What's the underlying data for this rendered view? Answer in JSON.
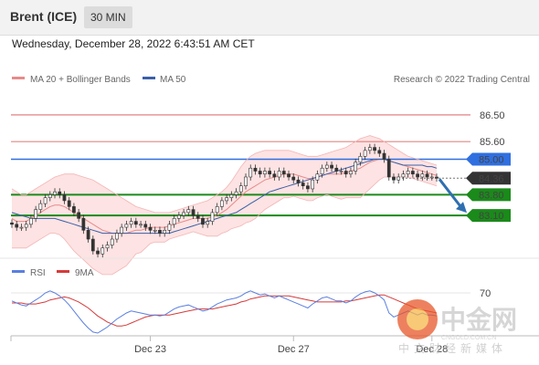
{
  "header": {
    "title": "Brent (ICE)",
    "timeframe": "30 MIN"
  },
  "date_line": "Wednesday, December 28, 2022 6:43:51 AM CET",
  "copyright": "Research © 2022 Trading Central",
  "watermark": {
    "main": "中金网",
    "sub": "CNGOLD.COM.CN",
    "tagline": "中文财经新媒体"
  },
  "colors": {
    "ma20_bb": "#e88a8a",
    "ma50": "#3a5fa8",
    "support": "#1a8a1a",
    "resistance": "#d64a4a",
    "pivot": "#2f6fe0",
    "price": "#333333",
    "rsi": "#5b7fe0",
    "rsi_ma": "#d63a3a",
    "band_fill": "#fde3e3",
    "arrow": "#2f6fb0"
  },
  "chart_data": [
    {
      "type": "candlestick",
      "legend": [
        {
          "name": "MA 20 + Bollinger Bands",
          "color": "#e88a8a"
        },
        {
          "name": "MA 50",
          "color": "#3a5fa8"
        }
      ],
      "x_ticks": [
        "Dec 23",
        "Dec 27",
        "Dec 28"
      ],
      "ylim": [
        81.9,
        87.3
      ],
      "levels": [
        {
          "label": "86.50",
          "value": 86.5,
          "kind": "resistance"
        },
        {
          "label": "85.60",
          "value": 85.6,
          "kind": "resistance"
        },
        {
          "label": "85.00",
          "value": 85.0,
          "kind": "pivot"
        },
        {
          "label": "84.36",
          "value": 84.36,
          "kind": "last-price"
        },
        {
          "label": "83.80",
          "value": 83.8,
          "kind": "support"
        },
        {
          "label": "83.10",
          "value": 83.1,
          "kind": "support"
        }
      ],
      "close": [
        82.8,
        82.7,
        82.7,
        82.8,
        83.0,
        83.3,
        83.5,
        83.7,
        83.8,
        83.9,
        83.8,
        83.6,
        83.4,
        83.2,
        83.0,
        82.6,
        82.3,
        81.9,
        81.8,
        82.0,
        82.1,
        82.3,
        82.5,
        82.7,
        82.8,
        82.9,
        82.8,
        82.8,
        82.7,
        82.6,
        82.6,
        82.5,
        82.6,
        82.8,
        83.0,
        83.1,
        83.2,
        83.3,
        83.1,
        83.0,
        82.8,
        82.9,
        83.2,
        83.4,
        83.6,
        83.7,
        83.8,
        83.9,
        84.1,
        84.4,
        84.7,
        84.6,
        84.5,
        84.6,
        84.5,
        84.4,
        84.6,
        84.5,
        84.4,
        84.3,
        84.2,
        84.1,
        84.0,
        84.3,
        84.5,
        84.7,
        84.8,
        84.7,
        84.6,
        84.6,
        84.5,
        84.6,
        84.9,
        85.1,
        85.3,
        85.4,
        85.3,
        85.2,
        85.0,
        84.4,
        84.3,
        84.4,
        84.5,
        84.6,
        84.5,
        84.4,
        84.5,
        84.4,
        84.4,
        84.36
      ],
      "ma20": [
        83.0,
        82.9,
        82.9,
        82.9,
        83.0,
        83.1,
        83.2,
        83.3,
        83.4,
        83.45,
        83.45,
        83.4,
        83.3,
        83.2,
        83.1,
        83.0,
        82.9,
        82.8,
        82.7,
        82.6,
        82.55,
        82.5,
        82.5,
        82.5,
        82.5,
        82.55,
        82.6,
        82.6,
        82.65,
        82.7,
        82.7,
        82.7,
        82.7,
        82.75,
        82.8,
        82.85,
        82.9,
        82.95,
        83.0,
        83.0,
        83.0,
        83.0,
        83.05,
        83.1,
        83.2,
        83.3,
        83.45,
        83.6,
        83.75,
        83.9,
        84.0,
        84.1,
        84.2,
        84.3,
        84.35,
        84.4,
        84.45,
        84.5,
        84.5,
        84.5,
        84.45,
        84.4,
        84.35,
        84.35,
        84.4,
        84.45,
        84.5,
        84.5,
        84.5,
        84.5,
        84.55,
        84.6,
        84.65,
        84.7,
        84.8,
        84.9,
        84.95,
        85.0,
        85.0,
        84.95,
        84.9,
        84.85,
        84.8,
        84.75,
        84.7,
        84.65,
        84.6,
        84.55,
        84.5,
        84.45
      ],
      "ma50": [
        83.2,
        83.15,
        83.1,
        83.05,
        83.0,
        83.0,
        83.0,
        83.0,
        83.0,
        83.0,
        82.95,
        82.9,
        82.85,
        82.8,
        82.75,
        82.7,
        82.65,
        82.6,
        82.55,
        82.5,
        82.5,
        82.5,
        82.5,
        82.5,
        82.5,
        82.5,
        82.5,
        82.5,
        82.5,
        82.5,
        82.5,
        82.5,
        82.5,
        82.5,
        82.55,
        82.6,
        82.65,
        82.7,
        82.75,
        82.8,
        82.85,
        82.9,
        82.95,
        83.0,
        83.05,
        83.1,
        83.15,
        83.2,
        83.3,
        83.4,
        83.5,
        83.6,
        83.7,
        83.8,
        83.9,
        83.95,
        84.0,
        84.05,
        84.1,
        84.15,
        84.2,
        84.25,
        84.3,
        84.35,
        84.4,
        84.45,
        84.5,
        84.55,
        84.6,
        84.65,
        84.7,
        84.75,
        84.8,
        84.85,
        84.9,
        84.95,
        85.0,
        85.0,
        85.0,
        84.95,
        84.9,
        84.85,
        84.8,
        84.8,
        84.8,
        84.8,
        84.8,
        84.75,
        84.75,
        84.7
      ],
      "bb_upper": [
        84.0,
        83.9,
        83.8,
        83.8,
        83.9,
        84.0,
        84.1,
        84.2,
        84.3,
        84.4,
        84.45,
        84.5,
        84.5,
        84.5,
        84.45,
        84.4,
        84.35,
        84.3,
        84.2,
        84.1,
        84.0,
        83.9,
        83.8,
        83.7,
        83.6,
        83.5,
        83.4,
        83.35,
        83.3,
        83.25,
        83.2,
        83.2,
        83.2,
        83.2,
        83.25,
        83.3,
        83.35,
        83.4,
        83.45,
        83.5,
        83.55,
        83.6,
        83.7,
        83.8,
        83.9,
        84.05,
        84.25,
        84.5,
        84.75,
        84.95,
        85.1,
        85.2,
        85.25,
        85.3,
        85.3,
        85.3,
        85.3,
        85.3,
        85.3,
        85.25,
        85.2,
        85.15,
        85.1,
        85.1,
        85.1,
        85.15,
        85.2,
        85.25,
        85.3,
        85.35,
        85.4,
        85.5,
        85.6,
        85.7,
        85.75,
        85.8,
        85.75,
        85.7,
        85.6,
        85.5,
        85.4,
        85.3,
        85.2,
        85.1,
        85.05,
        85.0,
        84.95,
        84.9,
        84.85,
        84.8
      ],
      "bb_lower": [
        82.0,
        82.0,
        82.0,
        82.0,
        82.1,
        82.2,
        82.3,
        82.4,
        82.5,
        82.5,
        82.45,
        82.3,
        82.1,
        81.9,
        81.75,
        81.6,
        81.45,
        81.3,
        81.2,
        81.1,
        81.1,
        81.1,
        81.2,
        81.3,
        81.4,
        81.6,
        81.8,
        81.85,
        82.0,
        82.15,
        82.2,
        82.2,
        82.2,
        82.3,
        82.35,
        82.4,
        82.45,
        82.5,
        82.55,
        82.5,
        82.45,
        82.4,
        82.4,
        82.4,
        82.5,
        82.55,
        82.65,
        82.7,
        82.75,
        82.85,
        82.9,
        83.0,
        83.15,
        83.3,
        83.4,
        83.5,
        83.6,
        83.7,
        83.7,
        83.75,
        83.7,
        83.65,
        83.6,
        83.6,
        83.7,
        83.75,
        83.8,
        83.75,
        83.7,
        83.65,
        83.7,
        83.7,
        83.7,
        83.7,
        83.85,
        84.0,
        84.15,
        84.3,
        84.4,
        84.4,
        84.4,
        84.4,
        84.4,
        84.4,
        84.35,
        84.3,
        84.25,
        84.2,
        84.15,
        84.1
      ]
    },
    {
      "type": "line",
      "legend": [
        {
          "name": "RSI",
          "color": "#5b7fe0"
        },
        {
          "name": "9MA",
          "color": "#d63a3a"
        }
      ],
      "ylim": [
        30,
        80
      ],
      "y_ticks": [
        70
      ],
      "series": [
        {
          "name": "RSI",
          "values": [
            62,
            60,
            58,
            57,
            60,
            63,
            66,
            70,
            72,
            70,
            67,
            63,
            58,
            52,
            46,
            40,
            35,
            31,
            30,
            33,
            36,
            40,
            44,
            47,
            50,
            52,
            51,
            50,
            49,
            48,
            48,
            47,
            48,
            51,
            54,
            56,
            57,
            58,
            56,
            54,
            52,
            53,
            56,
            59,
            61,
            63,
            64,
            65,
            67,
            70,
            72,
            70,
            68,
            69,
            67,
            65,
            67,
            65,
            63,
            61,
            59,
            57,
            55,
            59,
            62,
            65,
            66,
            64,
            62,
            62,
            60,
            62,
            66,
            69,
            71,
            72,
            70,
            67,
            63,
            50,
            46,
            48,
            50,
            52,
            50,
            48,
            50,
            48,
            48,
            47
          ]
        },
        {
          "name": "9MA",
          "values": [
            60,
            60,
            60,
            59,
            59,
            59,
            60,
            61,
            63,
            64,
            65,
            66,
            65,
            63,
            61,
            58,
            55,
            51,
            47,
            44,
            41,
            39,
            37,
            37,
            38,
            40,
            42,
            44,
            46,
            47,
            48,
            48,
            48,
            48,
            49,
            50,
            51,
            52,
            53,
            54,
            54,
            54,
            54,
            55,
            56,
            57,
            58,
            59,
            61,
            62,
            64,
            65,
            66,
            67,
            67,
            67,
            67,
            67,
            67,
            66,
            65,
            64,
            63,
            62,
            61,
            61,
            61,
            61,
            61,
            61,
            62,
            62,
            63,
            64,
            65,
            66,
            67,
            68,
            68,
            66,
            64,
            62,
            60,
            58,
            56,
            54,
            53,
            52,
            51,
            50
          ]
        }
      ]
    }
  ]
}
